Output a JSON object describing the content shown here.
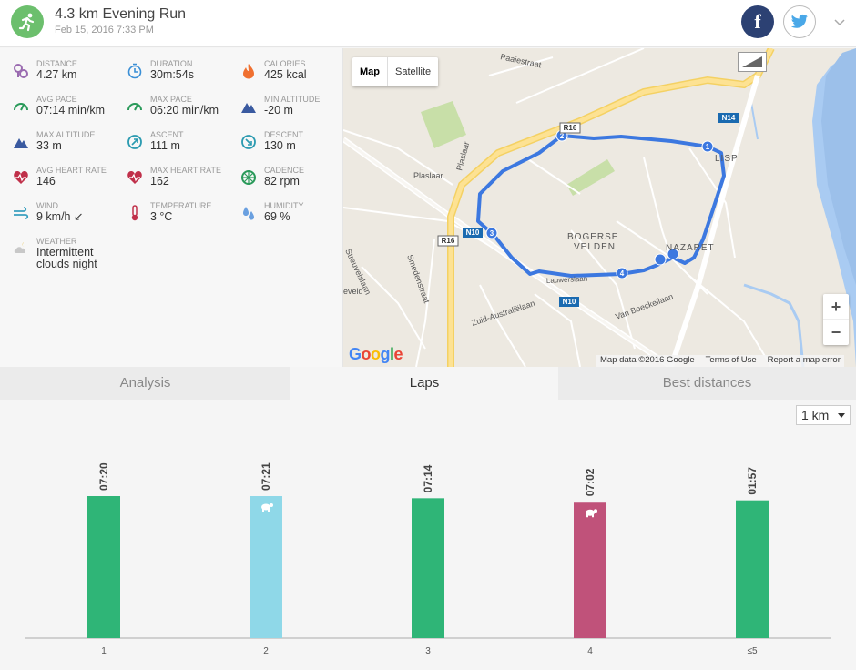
{
  "header": {
    "title": "4.3 km Evening Run",
    "subtitle": "Feb 15, 2016 7:33 PM",
    "facebook_label": "f"
  },
  "stats": [
    {
      "label": "DISTANCE",
      "value": "4.27 km",
      "icon": "distance-icon",
      "color": "#9a6bb0"
    },
    {
      "label": "DURATION",
      "value": "30m:54s",
      "icon": "stopwatch-icon",
      "color": "#3a8fd6"
    },
    {
      "label": "CALORIES",
      "value": "425 kcal",
      "icon": "flame-icon",
      "color": "#f07030"
    },
    {
      "label": "AVG PACE",
      "value": "07:14 min/km",
      "icon": "pace-gauge-icon",
      "color": "#2a9a5a"
    },
    {
      "label": "MAX PACE",
      "value": "06:20 min/km",
      "icon": "pace-gauge-icon",
      "color": "#2a9a5a"
    },
    {
      "label": "MIN ALTITUDE",
      "value": "-20 m",
      "icon": "mountain-icon",
      "color": "#3a5aa0"
    },
    {
      "label": "MAX ALTITUDE",
      "value": "33 m",
      "icon": "mountain-icon",
      "color": "#3a5aa0"
    },
    {
      "label": "ASCENT",
      "value": "111 m",
      "icon": "compass-up-icon",
      "color": "#2a9ab0"
    },
    {
      "label": "DESCENT",
      "value": "130 m",
      "icon": "compass-down-icon",
      "color": "#2a9ab0"
    },
    {
      "label": "AVG HEART RATE",
      "value": "146",
      "icon": "heart-icon",
      "color": "#c0304a"
    },
    {
      "label": "MAX HEART RATE",
      "value": "162",
      "icon": "heart-icon",
      "color": "#c0304a"
    },
    {
      "label": "CADENCE",
      "value": "82 rpm",
      "icon": "wheel-icon",
      "color": "#2a9a5a"
    },
    {
      "label": "WIND",
      "value": "9 km/h ↙",
      "icon": "wind-icon",
      "color": "#3aa0c0"
    },
    {
      "label": "TEMPERATURE",
      "value": "3 °C",
      "icon": "thermometer-icon",
      "color": "#c0304a"
    },
    {
      "label": "HUMIDITY",
      "value": "69 %",
      "icon": "droplets-icon",
      "color": "#6aa0e0"
    },
    {
      "label": "WEATHER",
      "value": "Intermittent clouds night",
      "icon": "cloud-moon-icon",
      "color": "#c8c8c8"
    }
  ],
  "map": {
    "btn_map": "Map",
    "btn_satellite": "Satellite",
    "zoom_in": "+",
    "zoom_out": "−",
    "google": "Google",
    "attribution": "Map data ©2016 Google",
    "terms": "Terms of Use",
    "report": "Report a map error",
    "labels": {
      "paaiestraat": "Paaiestraat",
      "plaslaar1": "Plaslaar",
      "plaslaar2": "Plaslaar",
      "r16a": "R16",
      "r16b": "R16",
      "n14": "N14",
      "lisp": "LISP",
      "n10a": "N10",
      "n10b": "N10",
      "bogerse": "BOGERSE",
      "velden": "VELDEN",
      "nazaret": "NAZARET",
      "streuvelslaan": "Streuvelslaan",
      "smedenstraat": "Smedenstraat",
      "veld": "eveld",
      "zuid": "Zuid-Australiëlaan",
      "boeckel": "Van Boeckellaan",
      "lauw": "Lauwerslaan",
      "m1": "1",
      "m2": "2",
      "m3": "3",
      "m4": "4"
    }
  },
  "tabs": [
    {
      "label": "Analysis",
      "active": false
    },
    {
      "label": "Laps",
      "active": true
    },
    {
      "label": "Best distances",
      "active": false
    }
  ],
  "lap_select": "1 km",
  "chart_data": {
    "type": "bar",
    "categories": [
      "1",
      "2",
      "3",
      "4",
      "≤5"
    ],
    "values": [
      440,
      441,
      434,
      422,
      117
    ],
    "value_labels": [
      "07:20",
      "07:21",
      "07:14",
      "07:02",
      "01:57"
    ],
    "bar_heights": [
      1.0,
      1.0,
      0.985,
      0.96,
      0.97
    ],
    "bar_colors": [
      "#2fb577",
      "#8fd8e8",
      "#2fb577",
      "#c0527a",
      "#2fb577"
    ],
    "markers": [
      "",
      "turtle-icon",
      "",
      "turtle-icon",
      ""
    ],
    "ylabel": "",
    "xlabel": ""
  }
}
